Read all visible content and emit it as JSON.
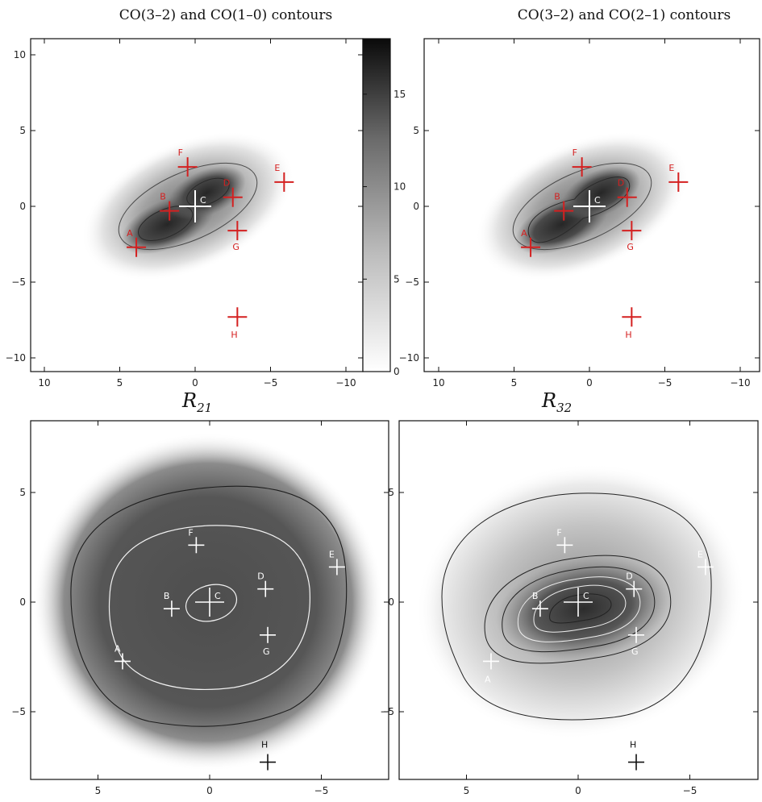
{
  "chart_data": [
    {
      "type": "heatmap",
      "title": "CO(3–2) and CO(1–0) contours",
      "xlabel": "",
      "ylabel": "",
      "xlim": [
        11,
        -11
      ],
      "ylim": [
        -11,
        11
      ],
      "xticks": [
        "10",
        "5",
        "0",
        "−5",
        "−10"
      ],
      "yticks": [
        "10",
        "5",
        "0",
        "−5",
        "−10"
      ],
      "colorbar": {
        "ticks": [
          "0",
          "5",
          "10",
          "15"
        ],
        "range": [
          0,
          18
        ],
        "colormap": "white-to-black"
      },
      "points": [
        {
          "name": "A",
          "x": 3.9,
          "y": -2.7
        },
        {
          "name": "B",
          "x": 1.7,
          "y": -0.3
        },
        {
          "name": "C",
          "x": 0.0,
          "y": 0.0
        },
        {
          "name": "D",
          "x": -2.5,
          "y": 0.6
        },
        {
          "name": "E",
          "x": -5.9,
          "y": 1.6
        },
        {
          "name": "F",
          "x": 0.5,
          "y": 2.6
        },
        {
          "name": "G",
          "x": -2.8,
          "y": -1.6
        },
        {
          "name": "H",
          "x": -2.8,
          "y": -7.3
        }
      ],
      "marker_color": "#d42020"
    },
    {
      "type": "heatmap",
      "title": "CO(3–2) and CO(2–1) contours",
      "xlabel": "",
      "ylabel": "",
      "xlim": [
        11,
        -11
      ],
      "ylim": [
        -11,
        11
      ],
      "xticks": [
        "10",
        "5",
        "0",
        "−5",
        "−10"
      ],
      "yticks": [
        "5",
        "0",
        "−5",
        "−10"
      ],
      "points": [
        {
          "name": "A",
          "x": 3.9,
          "y": -2.7
        },
        {
          "name": "B",
          "x": 1.7,
          "y": -0.3
        },
        {
          "name": "C",
          "x": 0.0,
          "y": 0.0
        },
        {
          "name": "D",
          "x": -2.5,
          "y": 0.6
        },
        {
          "name": "E",
          "x": -5.9,
          "y": 1.6
        },
        {
          "name": "F",
          "x": 0.5,
          "y": 2.6
        },
        {
          "name": "G",
          "x": -2.8,
          "y": -1.6
        },
        {
          "name": "H",
          "x": -2.8,
          "y": -7.3
        }
      ],
      "marker_color": "#d42020"
    },
    {
      "type": "heatmap",
      "title": "R21",
      "title_main": "R",
      "title_sub": "21",
      "xlabel": "",
      "ylabel": "",
      "xlim": [
        8,
        -8
      ],
      "ylim": [
        -8.5,
        8.5
      ],
      "xticks": [
        "5",
        "0",
        "−5"
      ],
      "yticks": [
        "5",
        "0",
        "−5"
      ],
      "points": [
        {
          "name": "A",
          "x": 3.9,
          "y": -2.7
        },
        {
          "name": "B",
          "x": 1.7,
          "y": -0.3
        },
        {
          "name": "C",
          "x": 0.0,
          "y": 0.0
        },
        {
          "name": "D",
          "x": -2.5,
          "y": 0.6
        },
        {
          "name": "E",
          "x": -5.7,
          "y": 1.6
        },
        {
          "name": "F",
          "x": 0.6,
          "y": 2.6
        },
        {
          "name": "G",
          "x": -2.6,
          "y": -1.5
        },
        {
          "name": "H",
          "x": -2.6,
          "y": -7.3
        }
      ]
    },
    {
      "type": "heatmap",
      "title": "R32",
      "title_main": "R",
      "title_sub": "32",
      "xlabel": "",
      "ylabel": "",
      "xlim": [
        8,
        -8
      ],
      "ylim": [
        -8.5,
        8.5
      ],
      "xticks": [
        "5",
        "0",
        "−5"
      ],
      "yticks": [
        "5",
        "0",
        "−5"
      ],
      "points": [
        {
          "name": "A",
          "x": 3.9,
          "y": -2.7
        },
        {
          "name": "B",
          "x": 1.7,
          "y": -0.3
        },
        {
          "name": "C",
          "x": 0.0,
          "y": 0.0
        },
        {
          "name": "D",
          "x": -2.5,
          "y": 0.6
        },
        {
          "name": "E",
          "x": -5.7,
          "y": 1.6
        },
        {
          "name": "F",
          "x": 0.6,
          "y": 2.6
        },
        {
          "name": "G",
          "x": -2.6,
          "y": -1.5
        },
        {
          "name": "H",
          "x": -2.6,
          "y": -7.3
        }
      ]
    }
  ]
}
